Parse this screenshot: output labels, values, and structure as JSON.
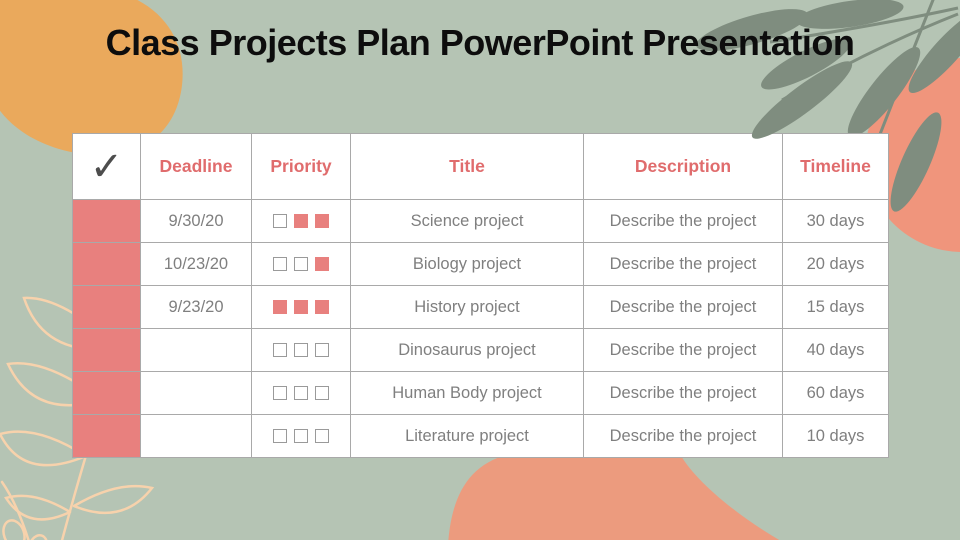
{
  "title": "Class Projects Plan PowerPoint Presentation",
  "icons": {
    "checkmark": "✓"
  },
  "colors": {
    "background_sage": "#b5c4b4",
    "blob_orange": "#eaa95c",
    "circle_peach": "#f0957c",
    "bottom_blob_peach": "#ec9b7e",
    "foliage_green": "#7f8d7f",
    "line_art_cream": "#f7d2ac",
    "accent_salmon": "#e8807e",
    "header_text": "#e06c6d",
    "body_text": "#7f7f7f",
    "table_border": "#a9a9a9",
    "title_text": "#0d0d0d"
  },
  "table": {
    "headers": [
      "Deadline",
      "Priority",
      "Title",
      "Description",
      "Timeline"
    ],
    "rows": [
      {
        "status_filled": true,
        "deadline": "9/30/20",
        "priority": [
          false,
          true,
          true
        ],
        "title": "Science project",
        "description": "Describe the project",
        "timeline": "30 days"
      },
      {
        "status_filled": true,
        "deadline": "10/23/20",
        "priority": [
          false,
          false,
          true
        ],
        "title": "Biology project",
        "description": "Describe the project",
        "timeline": "20 days"
      },
      {
        "status_filled": true,
        "deadline": "9/23/20",
        "priority": [
          true,
          true,
          true
        ],
        "title": "History project",
        "description": "Describe the project",
        "timeline": "15 days"
      },
      {
        "status_filled": true,
        "deadline": "",
        "priority": [
          false,
          false,
          false
        ],
        "title": "Dinosaurus project",
        "description": "Describe the project",
        "timeline": "40 days"
      },
      {
        "status_filled": true,
        "deadline": "",
        "priority": [
          false,
          false,
          false
        ],
        "title": "Human Body project",
        "description": "Describe the project",
        "timeline": "60 days"
      },
      {
        "status_filled": true,
        "deadline": "",
        "priority": [
          false,
          false,
          false
        ],
        "title": "Literature project",
        "description": "Describe the project",
        "timeline": "10 days"
      }
    ]
  }
}
